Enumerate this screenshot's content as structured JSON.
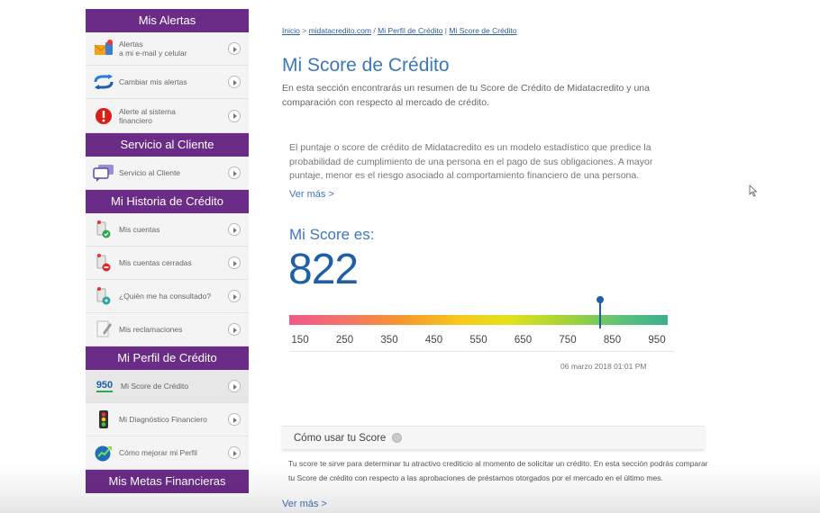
{
  "sidebar": {
    "sections": [
      {
        "title": "Mis Alertas",
        "items": [
          {
            "label_line1": "Alertas",
            "label_line2": "a mi e-mail y celular"
          },
          {
            "label_line1": "Cambiar mis alertas",
            "label_line2": ""
          },
          {
            "label_line1": "Alerte al sistema",
            "label_line2": "financiero"
          }
        ]
      },
      {
        "title": "Servicio al Cliente",
        "items": [
          {
            "label_line1": "Servicio al Cliente",
            "label_line2": ""
          }
        ]
      },
      {
        "title": "Mi Historia de Crédito",
        "items": [
          {
            "label_line1": "Mis cuentas",
            "label_line2": ""
          },
          {
            "label_line1": "Mis cuentas cerradas",
            "label_line2": ""
          },
          {
            "label_line1": "¿Quién me ha consultado?",
            "label_line2": ""
          },
          {
            "label_line1": "Mis reclamaciones",
            "label_line2": ""
          }
        ]
      },
      {
        "title": "Mi Perfil de Crédito",
        "items": [
          {
            "label_line1": "Mi Score de Crédito",
            "label_line2": "",
            "icon_text": "950"
          },
          {
            "label_line1": "Mi Diagnóstico Financiero",
            "label_line2": ""
          },
          {
            "label_line1": "Cómo mejorar mi Perfil",
            "label_line2": ""
          }
        ]
      },
      {
        "title": "Mis Metas Financieras",
        "items": []
      }
    ]
  },
  "breadcrumb": {
    "home": "Inicio",
    "sep1": ">",
    "site": "midatacredito.com",
    "sep2": "/",
    "profile": "Mi Perfil de Crédito",
    "sep3": "|",
    "current": "Mi Score de Crédito"
  },
  "main": {
    "title": "Mi Score de Crédito",
    "intro": "En esta sección encontrarás un resumen de tu Score de Crédito de Midatacredito y una comparación con respecto al mercado de crédito.",
    "description": "El puntaje o score de crédito de Midatacredito es un modelo estadístico que predice la probabilidad de cumplimiento de una persona en el pago de sus obligaciones. A mayor puntaje, menor es el riesgo asociado al comportamiento financiero de una persona.",
    "ver_mas": "Ver más >",
    "score_heading": "Mi Score es:",
    "score_value": "822",
    "score_numeric": 822,
    "scale_ticks": [
      "150",
      "250",
      "350",
      "450",
      "550",
      "650",
      "750",
      "850",
      "950"
    ],
    "scale_min": 150,
    "scale_max": 950,
    "score_date": "06 marzo 2018 01:01 PM",
    "use_title": "Cómo usar tu Score",
    "use_text": "Tu score te sirve para determinar tu atractivo crediticio al momento de solicitar un crédito. En esta sección podrás comparar tu Score de crédito con respecto a las aprobaciones de préstamos otorgados por el mercado en el último mes.",
    "ver_mas_2": "Ver más >"
  },
  "colors": {
    "sidebar_header": "#6a2c86",
    "title_blue": "#3c78b8",
    "score_blue": "#1f5fa8",
    "link_blue": "#2a5f9e"
  }
}
